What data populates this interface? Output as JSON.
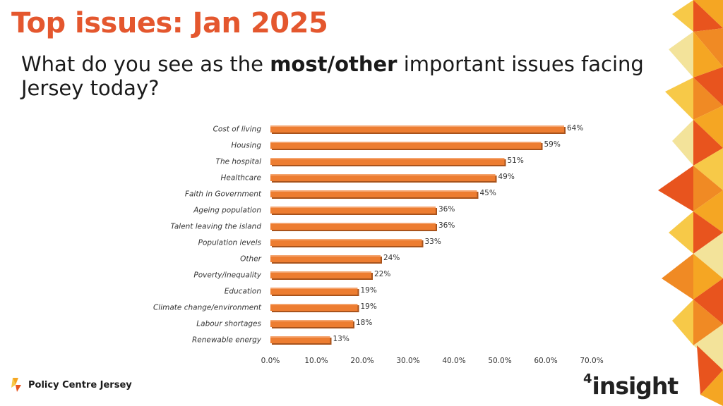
{
  "header": {
    "title": "Top issues: Jan 2025",
    "subtitle_pre": "What do you see as the ",
    "subtitle_bold": "most/other",
    "subtitle_post": " important issues facing Jersey today?"
  },
  "chart_data": {
    "type": "bar",
    "orientation": "horizontal",
    "categories": [
      "Cost of living",
      "Housing",
      "The hospital",
      "Healthcare",
      "Faith in Government",
      "Ageing population",
      "Talent leaving the island",
      "Population levels",
      "Other",
      "Poverty/inequality",
      "Education",
      "Climate change/environment",
      "Labour shortages",
      "Renewable energy"
    ],
    "values": [
      64,
      59,
      51,
      49,
      45,
      36,
      36,
      33,
      24,
      22,
      19,
      19,
      18,
      13
    ],
    "data_labels": [
      "64%",
      "59%",
      "51%",
      "49%",
      "45%",
      "36%",
      "36%",
      "33%",
      "24%",
      "22%",
      "19%",
      "19%",
      "18%",
      "13%"
    ],
    "xlim": [
      0,
      70
    ],
    "xticks": [
      0,
      10,
      20,
      30,
      40,
      50,
      60,
      70
    ],
    "xtick_labels": [
      "0.0%",
      "10.0%",
      "20.0%",
      "30.0%",
      "40.0%",
      "50.0%",
      "60.0%",
      "70.0%"
    ],
    "bar_color": "#ed7d31",
    "grid": false,
    "legend": "none"
  },
  "footer": {
    "org_name": "Policy Centre Jersey",
    "brand_sup": "4",
    "brand_text": "insight"
  },
  "colors": {
    "title": "#e4572e",
    "deco": [
      "#f5a623",
      "#e8541e",
      "#f7c948",
      "#f3e39a",
      "#f08a24"
    ]
  }
}
